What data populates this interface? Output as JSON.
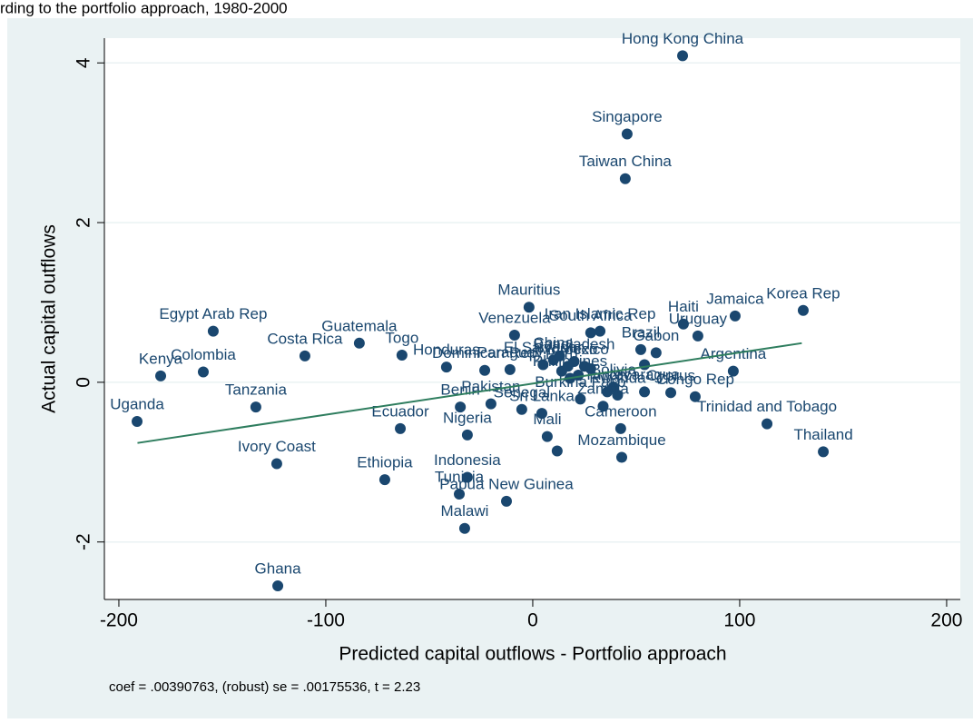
{
  "chart_data": {
    "type": "scatter",
    "title": "rding to the portfolio approach, 1980-2000",
    "x_label": "Predicted capital outflows - Portfolio approach",
    "y_label": "Actual capital outflows",
    "note": "coef = .00390763, (robust) se = .00175536, t = 2.23",
    "xlim": [
      -207,
      206.6
    ],
    "ylim": [
      -2.72,
      4.31
    ],
    "xticks": [
      -200,
      -100,
      0,
      100,
      200
    ],
    "yticks": [
      -2,
      0,
      2,
      4
    ],
    "grid": true,
    "color": "#1a476f",
    "x": [
      72.4,
      45.6,
      44.7,
      -1.8,
      130.7,
      97.8,
      72.8,
      79.8,
      59.6,
      52.2,
      96.9,
      66.7,
      78.5,
      113.2,
      140.4,
      -154.4,
      -179.8,
      -159.2,
      -191.2,
      -133.8,
      -123.7,
      -123.2,
      -110.1,
      -83.8,
      -63.2,
      -41.7,
      -23.2,
      -64,
      -71.5,
      -31.6,
      -35.5,
      -12.7,
      -32.9,
      -31.6,
      -35,
      -20.2,
      -5.3,
      4.4,
      7,
      43,
      11.8,
      42.5,
      -8.8,
      28,
      32.5,
      -11,
      10,
      20,
      5,
      14,
      18,
      39,
      41,
      23,
      25,
      36,
      17,
      54,
      54,
      13,
      22,
      28,
      34
    ],
    "y": [
      4.09,
      3.11,
      2.55,
      0.94,
      0.9,
      0.83,
      0.73,
      0.58,
      0.37,
      0.41,
      0.14,
      -0.13,
      -0.18,
      -0.52,
      -0.87,
      0.64,
      0.08,
      0.13,
      -0.49,
      -0.31,
      -1.02,
      -2.55,
      0.33,
      0.49,
      0.34,
      0.19,
      0.15,
      -0.58,
      -1.22,
      -1.19,
      -1.4,
      -1.49,
      -1.83,
      -0.66,
      -0.31,
      -0.27,
      -0.34,
      -0.39,
      -0.68,
      -0.94,
      -0.86,
      -0.58,
      0.59,
      0.62,
      0.64,
      0.16,
      0.28,
      0.26,
      0.22,
      0.14,
      0.05,
      -0.06,
      -0.16,
      -0.21,
      0.2,
      -0.12,
      0.2,
      0.22,
      -0.12,
      0.33,
      0.09,
      0.17,
      -0.3
    ],
    "labels": [
      "Hong Kong China",
      "Singapore",
      "Taiwan China",
      "Mauritius",
      "Korea Rep",
      "Jamaica",
      "Haiti",
      "Uruguay",
      "Gabon",
      "Brazil",
      "Argentina",
      "Cyprus",
      "Congo Rep",
      "Trinidad and Tobago",
      "Thailand",
      "Egypt Arab Rep",
      "Kenya",
      "Colombia",
      "Uganda",
      "Tanzania",
      "Ivory Coast",
      "Ghana",
      "Costa Rica",
      "Guatemala",
      "Togo",
      "Honduras",
      "Dominican Rep",
      "Ecuador",
      "Ethiopia",
      "Indonesia",
      "Tunisia",
      "Papua New Guinea",
      "Malawi",
      "Nigeria",
      "Benin",
      "Pakistan",
      "Senegal",
      "Sri Lanka",
      "Mali",
      "Mozambique",
      null,
      "Cameroon",
      "Venezuela",
      "South Africa",
      "Iran Islamic Rep",
      "Paraguay",
      "China",
      "Bangladesh",
      "El Salvador",
      "Peru",
      "Philippines",
      "Bolivia",
      "Rwanda",
      "Burkina Faso",
      "Mexico",
      "Turkey",
      "Morocco",
      null,
      "Nicaragua",
      null,
      null,
      null,
      "Zambia"
    ],
    "fit_line": {
      "x": [
        -191,
        130
      ],
      "y": [
        -0.76,
        0.49
      ],
      "color": "#2e7d5e"
    }
  }
}
